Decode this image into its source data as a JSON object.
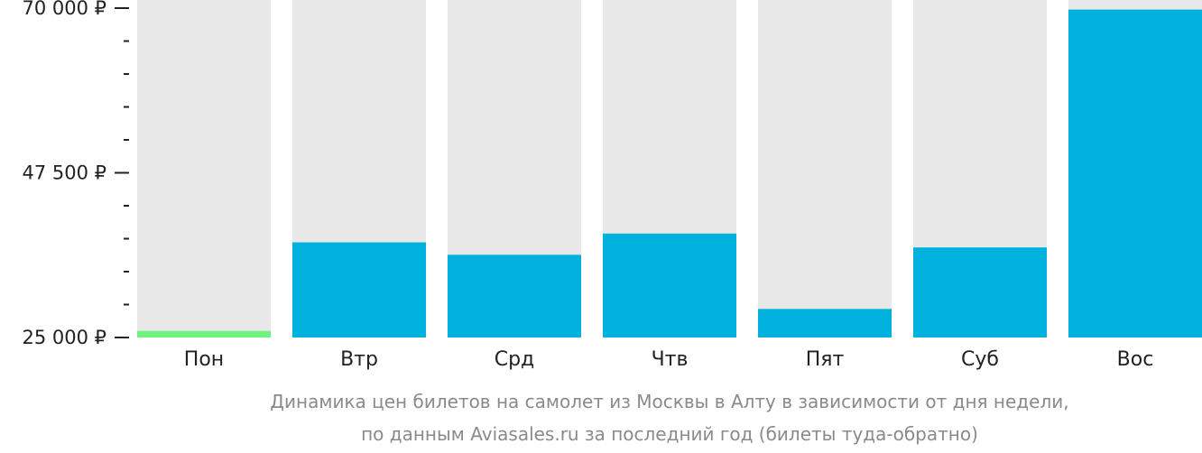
{
  "chart_data": {
    "type": "bar",
    "categories": [
      "Пон",
      "Втр",
      "Срд",
      "Чтв",
      "Пят",
      "Суб",
      "Вос"
    ],
    "values": [
      25900,
      38000,
      36300,
      39200,
      28900,
      37300,
      69800
    ],
    "ylim": [
      25000,
      70000
    ],
    "yticks": [
      {
        "value": 70000,
        "label": "70 000 ₽"
      },
      {
        "value": 47500,
        "label": "47 500 ₽"
      },
      {
        "value": 25000,
        "label": "25 000 ₽"
      }
    ],
    "minor_ticks": [
      65500,
      61000,
      56500,
      52000,
      43000,
      38500,
      34000,
      29500
    ],
    "grid": false,
    "colors": {
      "bar": "#00b0dd",
      "cheapest_bar": "#6ef37f",
      "background_bar": "#e8e8e8",
      "axis": "#222222"
    },
    "caption": [
      "Динамика цен билетов на самолет из Москвы в Алту в зависимости от дня недели,",
      "по данным Aviasales.ru за последний год (билеты туда-обратно)"
    ]
  }
}
